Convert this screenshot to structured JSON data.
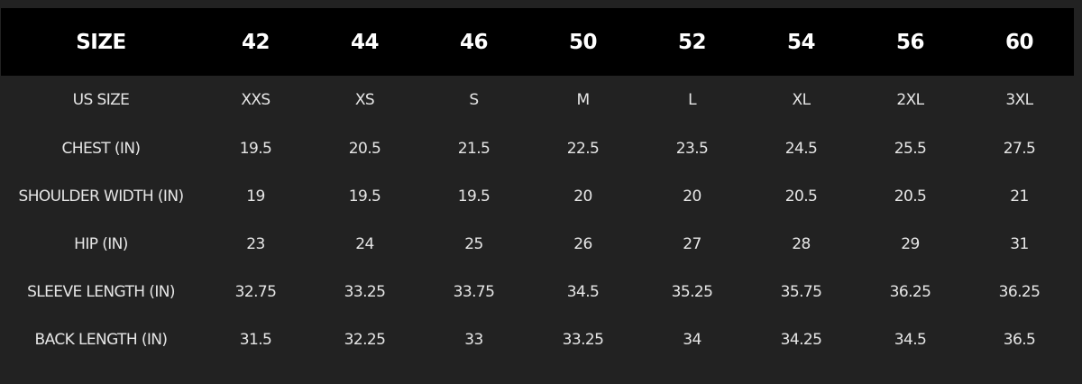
{
  "header": {
    "label": "SIZE",
    "sizes": [
      "42",
      "44",
      "46",
      "50",
      "52",
      "54",
      "56",
      "60"
    ]
  },
  "rows": [
    {
      "label": "US SIZE",
      "values": [
        "XXS",
        "XS",
        "S",
        "M",
        "L",
        "XL",
        "2XL",
        "3XL"
      ]
    },
    {
      "label": "CHEST (IN)",
      "values": [
        "19.5",
        "20.5",
        "21.5",
        "22.5",
        "23.5",
        "24.5",
        "25.5",
        "27.5"
      ]
    },
    {
      "label": "SHOULDER WIDTH (IN)",
      "values": [
        "19",
        "19.5",
        "19.5",
        "20",
        "20",
        "20.5",
        "20.5",
        "21"
      ]
    },
    {
      "label": "HIP (IN)",
      "values": [
        "23",
        "24",
        "25",
        "26",
        "27",
        "28",
        "29",
        "31"
      ]
    },
    {
      "label": "SLEEVE LENGTH (IN)",
      "values": [
        "32.75",
        "33.25",
        "33.75",
        "34.5",
        "35.25",
        "35.75",
        "36.25",
        "36.25"
      ]
    },
    {
      "label": "BACK LENGTH (IN)",
      "values": [
        "31.5",
        "32.25",
        "33",
        "33.25",
        "34",
        "34.25",
        "34.5",
        "36.5"
      ]
    }
  ],
  "colors": {
    "background": "#222222",
    "header_background": "#000000",
    "header_text": "#ffffff",
    "body_text": "#e6e6e6"
  }
}
